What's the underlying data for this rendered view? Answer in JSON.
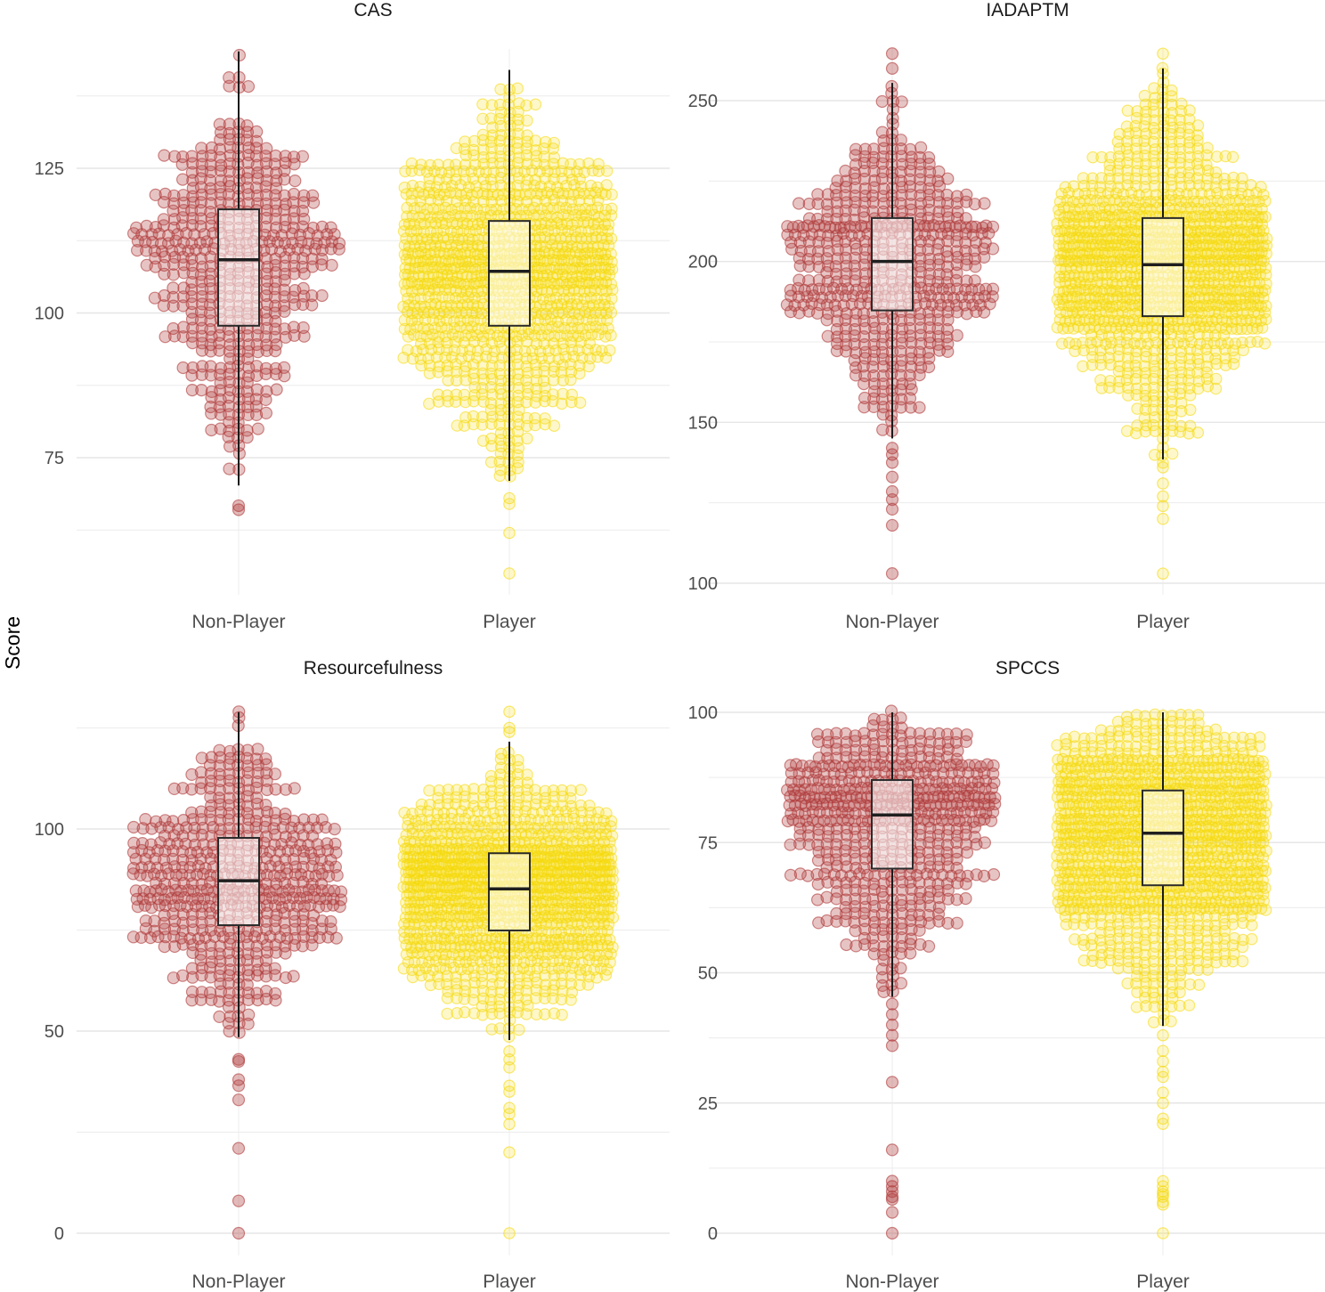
{
  "chart_data": {
    "type": "beeswarm-boxplot",
    "ylabel": "Score",
    "categories": [
      "Non-Player",
      "Player"
    ],
    "colors": {
      "Non-Player": "#b03a3a",
      "Player": "#f5d90a"
    },
    "panels": [
      {
        "title": "CAS",
        "ylim": [
          50,
          150
        ],
        "yticks": [
          75,
          100,
          125
        ],
        "minor_grid": [
          62.5,
          87.5,
          112.5,
          137.5
        ],
        "groups": [
          {
            "name": "Non-Player",
            "q1": 97.8,
            "median": 109.2,
            "q3": 117.9,
            "whisker_low": 70.2,
            "whisker_high": 145.2,
            "outliers": [
              66.7,
              66.0
            ],
            "n_points": 520
          },
          {
            "name": "Player",
            "q1": 97.8,
            "median": 107.2,
            "q3": 115.9,
            "whisker_low": 71.0,
            "whisker_high": 142.0,
            "outliers": [
              68.0,
              67.0,
              62.0,
              55.0
            ],
            "n_points": 1150
          }
        ]
      },
      {
        "title": "IADAPTM",
        "ylim": [
          97,
          270
        ],
        "yticks": [
          100,
          150,
          200,
          250
        ],
        "minor_grid": [
          125,
          175,
          225
        ],
        "groups": [
          {
            "name": "Non-Player",
            "q1": 184.8,
            "median": 200.0,
            "q3": 213.5,
            "whisker_low": 145.0,
            "whisker_high": 255.5,
            "outliers": [
              264.6,
              260.0,
              142.0,
              140.0,
              137.5,
              133.0,
              128.5,
              126.0,
              123.0,
              118.0,
              103.0
            ],
            "n_points": 560
          },
          {
            "name": "Player",
            "q1": 183.0,
            "median": 199.0,
            "q3": 213.5,
            "whisker_low": 138.5,
            "whisker_high": 260.0,
            "outliers": [
              264.6,
              136.0,
              131.0,
              127.0,
              124.0,
              120.0,
              103.0
            ],
            "n_points": 1200
          }
        ]
      },
      {
        "title": "Resourcefulness",
        "ylim": [
          -3,
          132
        ],
        "yticks": [
          0,
          50,
          100
        ],
        "minor_grid": [
          25,
          75,
          125
        ],
        "groups": [
          {
            "name": "Non-Player",
            "q1": 76.2,
            "median": 87.2,
            "q3": 97.8,
            "whisker_low": 48.5,
            "whisker_high": 128.9,
            "outliers": [
              43.0,
              42.5,
              38.0,
              36.5,
              33.0,
              21.0,
              8.0,
              0.0
            ],
            "n_points": 560
          },
          {
            "name": "Player",
            "q1": 74.9,
            "median": 85.2,
            "q3": 94.0,
            "whisker_low": 47.8,
            "whisker_high": 121.6,
            "outliers": [
              129.0,
              125.0,
              124.0,
              45.0,
              43.0,
              41.0,
              36.5,
              35.0,
              31.0,
              29.5,
              27.0,
              20.0,
              0.0
            ],
            "n_points": 1200
          }
        ]
      },
      {
        "title": "SPCCS",
        "ylim": [
          -2,
          102
        ],
        "yticks": [
          0,
          25,
          50,
          75,
          100
        ],
        "minor_grid": [
          12.5,
          37.5,
          62.5,
          87.5
        ],
        "groups": [
          {
            "name": "Non-Player",
            "q1": 70.0,
            "median": 80.3,
            "q3": 87.0,
            "whisker_low": 45.4,
            "whisker_high": 100.0,
            "outliers": [
              44.0,
              42.0,
              40.0,
              38.0,
              36.0,
              29.0,
              16.0,
              10.0,
              9.0,
              8.0,
              7.0,
              6.5,
              4.0,
              0.0
            ],
            "n_points": 600
          },
          {
            "name": "Player",
            "q1": 66.8,
            "median": 76.8,
            "q3": 85.0,
            "whisker_low": 39.8,
            "whisker_high": 100.0,
            "outliers": [
              38.0,
              35.0,
              33.0,
              31.0,
              30.0,
              27.0,
              25.0,
              22.0,
              21.0,
              10.0,
              9.0,
              8.0,
              7.5,
              7.0,
              6.0,
              5.5,
              0.0
            ],
            "n_points": 1250
          }
        ]
      }
    ]
  }
}
